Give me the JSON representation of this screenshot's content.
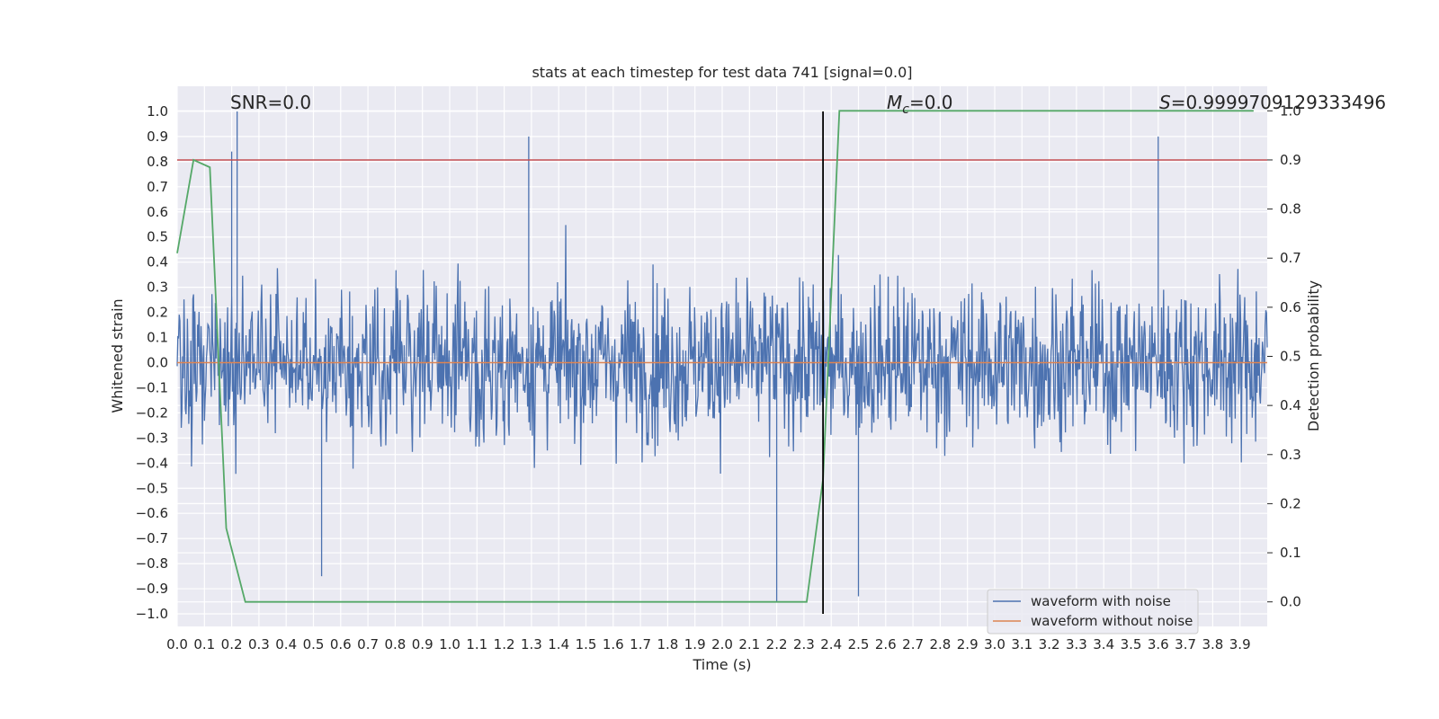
{
  "chart_data": {
    "type": "line",
    "title": "stats at each timestep for test data 741 [signal=0.0]",
    "xlabel": "Time (s)",
    "ylabel": "Whitened strain",
    "y2label": "Detection probability",
    "xlim": [
      0.0,
      4.0
    ],
    "ylim": [
      -1.05,
      1.1
    ],
    "y2lim": [
      -0.05,
      1.05
    ],
    "xticks": [
      "0.0",
      "0.1",
      "0.2",
      "0.3",
      "0.4",
      "0.5",
      "0.6",
      "0.7",
      "0.8",
      "0.9",
      "1.0",
      "1.1",
      "1.2",
      "1.3",
      "1.4",
      "1.5",
      "1.6",
      "1.7",
      "1.8",
      "1.9",
      "2.0",
      "2.1",
      "2.2",
      "2.3",
      "2.4",
      "2.5",
      "2.6",
      "2.7",
      "2.8",
      "2.9",
      "3.0",
      "3.1",
      "3.2",
      "3.3",
      "3.4",
      "3.5",
      "3.6",
      "3.7",
      "3.8",
      "3.9"
    ],
    "yticks": [
      "1.0",
      "0.9",
      "0.8",
      "0.7",
      "0.6",
      "0.5",
      "0.4",
      "0.3",
      "0.2",
      "0.1",
      "0.0",
      "−0.1",
      "−0.2",
      "−0.3",
      "−0.4",
      "−0.5",
      "−0.6",
      "−0.7",
      "−0.8",
      "−0.9",
      "−1.0"
    ],
    "y2ticks": [
      "1.0",
      "0.9",
      "0.8",
      "0.7",
      "0.6",
      "0.5",
      "0.4",
      "0.3",
      "0.2",
      "0.1",
      "0.0"
    ],
    "grid": true,
    "legend_position": "lower-right",
    "series": [
      {
        "name": "waveform with noise",
        "color": "#4c72b0",
        "axis": "left",
        "kind": "noise",
        "amplitude_range": [
          -0.95,
          1.0
        ],
        "notable_peaks": [
          {
            "x": 0.22,
            "y": 1.0
          },
          {
            "x": 0.2,
            "y": 0.84
          },
          {
            "x": 1.29,
            "y": 0.9
          },
          {
            "x": 3.6,
            "y": 0.9
          },
          {
            "x": 2.2,
            "y": -0.95
          },
          {
            "x": 0.53,
            "y": -0.85
          },
          {
            "x": 2.5,
            "y": -0.93
          }
        ]
      },
      {
        "name": "waveform without noise",
        "color": "#dd8452",
        "axis": "left",
        "x": [
          0.0,
          4.0
        ],
        "y": [
          0.0,
          0.0
        ]
      },
      {
        "name": "",
        "color": "#55a868",
        "axis": "right",
        "x": [
          0.0,
          0.06,
          0.12,
          0.18,
          0.25,
          2.31,
          2.37,
          2.43,
          3.95
        ],
        "y": [
          0.71,
          0.9,
          0.885,
          0.15,
          0.0,
          0.0,
          0.25,
          1.0,
          1.0
        ]
      }
    ],
    "hlines": [
      {
        "y": 0.9,
        "axis": "right",
        "color": "#c44e52"
      }
    ],
    "vlines": [
      {
        "x": 2.37,
        "y_from": -1.0,
        "y_to": 1.0,
        "color": "#000000"
      }
    ],
    "annotations": {
      "snr": "SNR=0.0",
      "mc_symbol": "M",
      "mc_subscript": "c",
      "mc_value": "=0.0",
      "s_symbol": "S",
      "s_value": "=0.9999709129333496"
    }
  }
}
